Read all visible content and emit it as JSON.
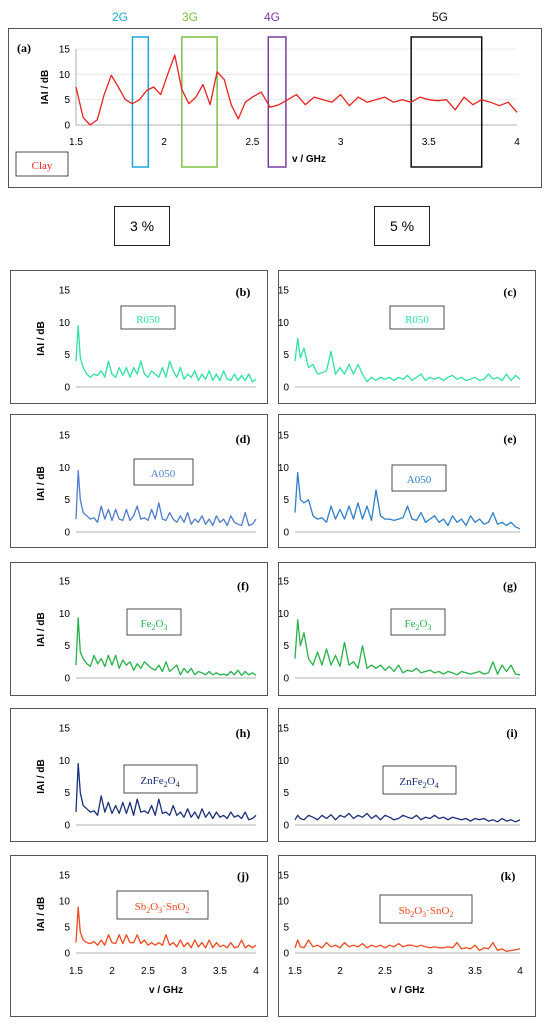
{
  "band_labels": [
    {
      "id": "2G",
      "text": "2G",
      "color": "#1aa7d8",
      "xmin": 1.82,
      "xmax": 1.91
    },
    {
      "id": "3G",
      "text": "3G",
      "color": "#7dc242",
      "xmin": 2.1,
      "xmax": 2.3
    },
    {
      "id": "4G",
      "text": "4G",
      "color": "#7a3ea1",
      "xmin": 2.59,
      "xmax": 2.69
    },
    {
      "id": "5G",
      "text": "5G",
      "color": "#111111",
      "xmin": 3.4,
      "xmax": 3.8
    }
  ],
  "concentrations": {
    "left": "3 %",
    "right": "5 %"
  },
  "shared_axes": {
    "ylabel": "IAI / dB",
    "xlabel": "v / GHz",
    "xlim": [
      1.5,
      4
    ],
    "ylim": [
      0,
      15
    ],
    "yticks": [
      "0",
      "5",
      "10",
      "15"
    ],
    "xticks": [
      "1.5",
      "2",
      "2.5",
      "3",
      "3.5",
      "4"
    ],
    "x_main_ticks": [
      "1.5",
      "2",
      "2.5",
      "3",
      "3.5",
      "4"
    ]
  },
  "chart_data": [
    {
      "id": "a",
      "type": "line",
      "panel_label": "(a)",
      "material": "Clay",
      "color": "#e8231f",
      "ylim": [
        0,
        15
      ],
      "xlim": [
        1.5,
        4
      ],
      "x": [
        1.5,
        1.54,
        1.58,
        1.62,
        1.66,
        1.7,
        1.74,
        1.78,
        1.82,
        1.86,
        1.9,
        1.94,
        1.98,
        2.02,
        2.06,
        2.1,
        2.14,
        2.18,
        2.22,
        2.26,
        2.3,
        2.34,
        2.38,
        2.42,
        2.46,
        2.5,
        2.55,
        2.6,
        2.65,
        2.7,
        2.75,
        2.8,
        2.85,
        2.9,
        2.95,
        3.0,
        3.05,
        3.1,
        3.15,
        3.2,
        3.25,
        3.3,
        3.35,
        3.4,
        3.45,
        3.5,
        3.55,
        3.6,
        3.65,
        3.7,
        3.75,
        3.8,
        3.85,
        3.9,
        3.95,
        4.0
      ],
      "y": [
        7.5,
        1.5,
        0,
        1,
        6,
        9.8,
        7.5,
        5,
        4.2,
        5,
        6.8,
        7.5,
        6,
        10,
        13.8,
        7,
        4.2,
        5.5,
        8,
        4,
        10.5,
        9,
        4,
        1.2,
        4.5,
        5.5,
        6.5,
        3.5,
        4,
        5,
        6,
        4,
        5.5,
        5,
        4.5,
        6,
        3.8,
        5.5,
        4.5,
        5,
        5.5,
        4.5,
        5,
        4.5,
        5.5,
        5,
        4.8,
        5,
        3,
        5.5,
        4,
        5,
        4.5,
        3.8,
        4.5,
        2.5
      ]
    },
    {
      "id": "b",
      "type": "line",
      "panel_label": "(b)",
      "material": "R050",
      "material_sub": "",
      "material_tail": "",
      "color": "#2fe2a0",
      "ylim": [
        0,
        15
      ],
      "xlim": [
        1.5,
        4
      ],
      "x": [
        1.5,
        1.53,
        1.56,
        1.6,
        1.65,
        1.7,
        1.75,
        1.8,
        1.85,
        1.9,
        1.95,
        2.0,
        2.05,
        2.1,
        2.15,
        2.2,
        2.25,
        2.3,
        2.35,
        2.4,
        2.45,
        2.5,
        2.55,
        2.6,
        2.65,
        2.7,
        2.75,
        2.8,
        2.85,
        2.9,
        2.95,
        3.0,
        3.05,
        3.1,
        3.15,
        3.2,
        3.25,
        3.3,
        3.35,
        3.4,
        3.45,
        3.5,
        3.55,
        3.6,
        3.65,
        3.7,
        3.75,
        3.8,
        3.85,
        3.9,
        3.95,
        4.0
      ],
      "y": [
        4,
        9.5,
        4.5,
        3,
        2,
        1.5,
        2,
        1.8,
        2.5,
        1.5,
        4,
        2,
        1.5,
        3,
        1.8,
        3,
        1.5,
        3,
        2,
        4,
        2,
        1.5,
        2.5,
        2,
        1.5,
        3,
        1.5,
        4,
        2.5,
        1.5,
        3,
        1.2,
        2,
        1.5,
        2.5,
        1,
        2,
        1.2,
        2.5,
        1,
        2,
        1,
        2.5,
        1.2,
        1,
        2,
        1,
        1.8,
        1,
        2,
        0.8,
        1.2
      ]
    },
    {
      "id": "c",
      "type": "line",
      "panel_label": "(c)",
      "material": "R050",
      "material_sub": "",
      "material_tail": "",
      "color": "#2fe2a0",
      "ylim": [
        0,
        15
      ],
      "xlim": [
        1.5,
        4
      ],
      "x": [
        1.5,
        1.53,
        1.56,
        1.6,
        1.65,
        1.7,
        1.75,
        1.8,
        1.85,
        1.9,
        1.95,
        2.0,
        2.05,
        2.1,
        2.15,
        2.2,
        2.25,
        2.3,
        2.35,
        2.4,
        2.45,
        2.5,
        2.55,
        2.6,
        2.65,
        2.7,
        2.75,
        2.8,
        2.85,
        2.9,
        2.95,
        3.0,
        3.05,
        3.1,
        3.15,
        3.2,
        3.25,
        3.3,
        3.35,
        3.4,
        3.45,
        3.5,
        3.55,
        3.6,
        3.65,
        3.7,
        3.75,
        3.8,
        3.85,
        3.9,
        3.95,
        4.0
      ],
      "y": [
        4,
        7.5,
        4.5,
        6,
        3,
        3.5,
        2,
        2.2,
        2.5,
        5.5,
        2,
        3,
        2,
        3.5,
        2,
        3.5,
        2,
        0.8,
        1.5,
        1,
        1.5,
        1.2,
        1.5,
        1,
        1.5,
        1.2,
        1.8,
        1,
        1.5,
        2,
        1,
        1.5,
        1.2,
        1.5,
        1,
        1.5,
        1.8,
        1.2,
        1.5,
        1,
        1.2,
        1.5,
        1,
        1.2,
        2,
        1.2,
        1.5,
        1,
        2,
        1,
        1.8,
        1.2
      ]
    },
    {
      "id": "d",
      "type": "line",
      "panel_label": "(d)",
      "material": "A050",
      "material_sub": "",
      "material_tail": "",
      "color": "#4f7ccc",
      "ylim": [
        0,
        15
      ],
      "xlim": [
        1.5,
        4
      ],
      "x": [
        1.5,
        1.53,
        1.56,
        1.6,
        1.65,
        1.7,
        1.75,
        1.8,
        1.85,
        1.9,
        1.95,
        2.0,
        2.05,
        2.1,
        2.15,
        2.2,
        2.25,
        2.3,
        2.35,
        2.4,
        2.45,
        2.5,
        2.55,
        2.6,
        2.65,
        2.7,
        2.75,
        2.8,
        2.85,
        2.9,
        2.95,
        3.0,
        3.05,
        3.1,
        3.15,
        3.2,
        3.25,
        3.3,
        3.35,
        3.4,
        3.45,
        3.5,
        3.55,
        3.6,
        3.65,
        3.7,
        3.75,
        3.8,
        3.85,
        3.9,
        3.95,
        4.0
      ],
      "y": [
        2,
        9.5,
        5,
        3,
        2.5,
        2,
        2.2,
        1.5,
        4,
        2,
        3.5,
        1.8,
        3.5,
        2,
        1.8,
        3.5,
        1.8,
        2.5,
        4,
        2,
        2.2,
        1.8,
        3.5,
        2,
        4.5,
        2,
        1.8,
        3,
        2,
        1.5,
        2.5,
        1.5,
        3,
        1.2,
        2,
        1.5,
        2.5,
        1.2,
        2,
        1,
        2.5,
        1.5,
        2,
        1,
        2.5,
        1.5,
        1.2,
        1,
        3,
        1,
        1.2,
        2
      ]
    },
    {
      "id": "e",
      "type": "line",
      "panel_label": "(e)",
      "material": "A050",
      "material_sub": "",
      "material_tail": "",
      "color": "#2f7fc8",
      "ylim": [
        0,
        15
      ],
      "xlim": [
        1.5,
        4
      ],
      "x": [
        1.5,
        1.53,
        1.56,
        1.6,
        1.65,
        1.7,
        1.75,
        1.8,
        1.85,
        1.9,
        1.95,
        2.0,
        2.05,
        2.1,
        2.15,
        2.2,
        2.25,
        2.3,
        2.35,
        2.4,
        2.45,
        2.5,
        2.55,
        2.6,
        2.65,
        2.7,
        2.75,
        2.8,
        2.85,
        2.9,
        2.95,
        3.0,
        3.05,
        3.1,
        3.15,
        3.2,
        3.25,
        3.3,
        3.35,
        3.4,
        3.45,
        3.5,
        3.55,
        3.6,
        3.65,
        3.7,
        3.75,
        3.8,
        3.85,
        3.9,
        3.95,
        4.0
      ],
      "y": [
        3,
        9.2,
        5,
        4.5,
        5,
        2.5,
        2,
        2.2,
        1.5,
        4,
        2,
        3.5,
        2,
        4,
        2,
        4.5,
        2,
        4,
        1.8,
        6.5,
        2.5,
        2,
        2,
        1.8,
        2,
        2.2,
        4,
        2,
        1.8,
        3,
        1.5,
        2,
        2.5,
        1.5,
        2,
        1,
        2.5,
        1.5,
        2,
        1,
        2.5,
        1.5,
        2,
        1.2,
        1.5,
        3,
        1.2,
        1.5,
        1,
        1.5,
        0.8,
        0.5
      ]
    },
    {
      "id": "f",
      "type": "line",
      "panel_label": "(f)",
      "material": "Fe",
      "material_sub": "2",
      "material_tail": "O3",
      "color": "#25b24a",
      "ylim": [
        0,
        15
      ],
      "xlim": [
        1.5,
        4
      ],
      "x": [
        1.5,
        1.53,
        1.56,
        1.6,
        1.65,
        1.7,
        1.75,
        1.8,
        1.85,
        1.9,
        1.95,
        2.0,
        2.05,
        2.1,
        2.15,
        2.2,
        2.25,
        2.3,
        2.35,
        2.4,
        2.45,
        2.5,
        2.55,
        2.6,
        2.65,
        2.7,
        2.75,
        2.8,
        2.85,
        2.9,
        2.95,
        3.0,
        3.05,
        3.1,
        3.15,
        3.2,
        3.25,
        3.3,
        3.35,
        3.4,
        3.45,
        3.5,
        3.55,
        3.6,
        3.65,
        3.7,
        3.75,
        3.8,
        3.85,
        3.9,
        3.95,
        4.0
      ],
      "y": [
        2,
        9.3,
        4,
        3,
        2.2,
        1.8,
        3.5,
        2.2,
        3,
        1.8,
        3.5,
        2,
        3.5,
        1.5,
        2.8,
        2,
        2.5,
        1.2,
        2.2,
        1.5,
        2.5,
        2,
        1.5,
        1.2,
        2,
        1,
        2.5,
        1,
        1.5,
        2,
        0.5,
        1.5,
        0.8,
        1.5,
        0.5,
        1,
        0.8,
        0.5,
        1,
        0.5,
        0.8,
        0.5,
        0.6,
        0.4,
        1,
        0.5,
        1.2,
        0.4,
        1,
        0.5,
        0.8,
        0.4
      ]
    },
    {
      "id": "g",
      "type": "line",
      "panel_label": "(g)",
      "material": "Fe",
      "material_sub": "2",
      "material_tail": "O3",
      "color": "#25b24a",
      "ylim": [
        0,
        15
      ],
      "xlim": [
        1.5,
        4
      ],
      "x": [
        1.5,
        1.53,
        1.56,
        1.6,
        1.65,
        1.7,
        1.75,
        1.8,
        1.85,
        1.9,
        1.95,
        2.0,
        2.05,
        2.1,
        2.15,
        2.2,
        2.25,
        2.3,
        2.35,
        2.4,
        2.45,
        2.5,
        2.55,
        2.6,
        2.65,
        2.7,
        2.75,
        2.8,
        2.85,
        2.9,
        2.95,
        3.0,
        3.05,
        3.1,
        3.15,
        3.2,
        3.25,
        3.3,
        3.35,
        3.4,
        3.45,
        3.5,
        3.55,
        3.6,
        3.65,
        3.7,
        3.75,
        3.8,
        3.85,
        3.9,
        3.95,
        4.0
      ],
      "y": [
        3,
        9,
        5,
        7,
        3,
        2,
        4,
        2,
        4.5,
        2,
        3.5,
        1.8,
        5.5,
        2,
        2.5,
        1.5,
        5,
        1.5,
        2,
        1.5,
        2,
        1.2,
        1.8,
        1,
        2,
        0.8,
        1.2,
        1,
        1.5,
        0.8,
        1,
        1.2,
        0.8,
        1,
        0.6,
        1,
        0.8,
        0.5,
        1,
        0.8,
        0.6,
        0.8,
        1,
        0.6,
        0.8,
        2.5,
        0.6,
        2,
        1,
        2,
        0.6,
        0.5
      ]
    },
    {
      "id": "h",
      "type": "line",
      "panel_label": "(h)",
      "material": "ZnFe",
      "material_sub": "2",
      "material_tail": "O4",
      "color": "#1a2f7a",
      "ylim": [
        0,
        15
      ],
      "xlim": [
        1.5,
        4
      ],
      "x": [
        1.5,
        1.53,
        1.56,
        1.6,
        1.65,
        1.7,
        1.75,
        1.8,
        1.85,
        1.9,
        1.95,
        2.0,
        2.05,
        2.1,
        2.15,
        2.2,
        2.25,
        2.3,
        2.35,
        2.4,
        2.45,
        2.5,
        2.55,
        2.6,
        2.65,
        2.7,
        2.75,
        2.8,
        2.85,
        2.9,
        2.95,
        3.0,
        3.05,
        3.1,
        3.15,
        3.2,
        3.25,
        3.3,
        3.35,
        3.4,
        3.45,
        3.5,
        3.55,
        3.6,
        3.65,
        3.7,
        3.75,
        3.8,
        3.85,
        3.9,
        3.95,
        4.0
      ],
      "y": [
        2,
        9.5,
        5,
        3,
        2.5,
        2,
        2.2,
        1.5,
        4.5,
        2,
        3.5,
        1.8,
        3,
        1.8,
        3.5,
        1.8,
        3.5,
        1.5,
        4,
        2,
        2.2,
        1.8,
        3,
        1.5,
        4,
        1.8,
        2,
        1.5,
        3,
        1.5,
        2,
        1.2,
        2.5,
        1.2,
        2,
        1,
        2.5,
        1.2,
        2,
        1,
        2,
        1.2,
        1.5,
        1,
        2,
        1.2,
        1.5,
        1,
        2,
        0.8,
        1,
        1.5
      ]
    },
    {
      "id": "i",
      "type": "line",
      "panel_label": "(i)",
      "material": "ZnFe",
      "material_sub": "2",
      "material_tail": "O4",
      "color": "#1a2f7a",
      "ylim": [
        0,
        15
      ],
      "xlim": [
        1.5,
        4
      ],
      "x": [
        1.5,
        1.53,
        1.56,
        1.6,
        1.65,
        1.7,
        1.75,
        1.8,
        1.85,
        1.9,
        1.95,
        2.0,
        2.05,
        2.1,
        2.15,
        2.2,
        2.25,
        2.3,
        2.35,
        2.4,
        2.45,
        2.5,
        2.55,
        2.6,
        2.65,
        2.7,
        2.75,
        2.8,
        2.85,
        2.9,
        2.95,
        3.0,
        3.05,
        3.1,
        3.15,
        3.2,
        3.25,
        3.3,
        3.35,
        3.4,
        3.45,
        3.5,
        3.55,
        3.6,
        3.65,
        3.7,
        3.75,
        3.8,
        3.85,
        3.9,
        3.95,
        4.0
      ],
      "y": [
        0.8,
        1.5,
        1,
        0.8,
        1.5,
        1.2,
        0.8,
        1.5,
        1,
        1.6,
        0.8,
        1.5,
        1.2,
        1.8,
        1,
        1.5,
        1.2,
        1.8,
        1,
        1.5,
        0.8,
        1.5,
        1.2,
        0.8,
        1,
        1.5,
        1.2,
        1,
        1.5,
        0.8,
        1.2,
        1,
        1.5,
        1,
        1.2,
        0.8,
        1.2,
        1,
        0.8,
        1,
        0.6,
        1,
        0.8,
        1,
        0.6,
        0.8,
        0.5,
        1,
        0.6,
        0.8,
        0.5,
        0.8
      ]
    },
    {
      "id": "j",
      "type": "line",
      "panel_label": "(j)",
      "material": "Sb",
      "material_sub": "2",
      "material_tail": "O3·SnO2",
      "color": "#ee4a1e",
      "ylim": [
        0,
        15
      ],
      "xlim": [
        1.5,
        4
      ],
      "x": [
        1.5,
        1.53,
        1.56,
        1.6,
        1.65,
        1.7,
        1.75,
        1.8,
        1.85,
        1.9,
        1.95,
        2.0,
        2.05,
        2.1,
        2.15,
        2.2,
        2.25,
        2.3,
        2.35,
        2.4,
        2.45,
        2.5,
        2.55,
        2.6,
        2.65,
        2.7,
        2.75,
        2.8,
        2.85,
        2.9,
        2.95,
        3.0,
        3.05,
        3.1,
        3.15,
        3.2,
        3.25,
        3.3,
        3.35,
        3.4,
        3.45,
        3.5,
        3.55,
        3.6,
        3.65,
        3.7,
        3.75,
        3.8,
        3.85,
        3.9,
        3.95,
        4.0
      ],
      "y": [
        2,
        8.8,
        4,
        2.5,
        2,
        1.8,
        2.2,
        1.5,
        2.5,
        1.5,
        3.5,
        2,
        1.8,
        3.5,
        1.8,
        3.5,
        2,
        2,
        3.5,
        1.8,
        2.5,
        1.5,
        2,
        1.5,
        2,
        1.5,
        3.5,
        1.5,
        2,
        1.2,
        2.5,
        1.2,
        2,
        1,
        2.5,
        1.2,
        2,
        1,
        2.5,
        1,
        2,
        1.2,
        1.5,
        1,
        2,
        1,
        1.2,
        2.5,
        1,
        1.5,
        1,
        1.5
      ]
    },
    {
      "id": "k",
      "type": "line",
      "panel_label": "(k)",
      "material": "Sb",
      "material_sub": "2",
      "material_tail": "O3·SnO2",
      "color": "#ee4a1e",
      "ylim": [
        0,
        15
      ],
      "xlim": [
        1.5,
        4
      ],
      "x": [
        1.5,
        1.53,
        1.56,
        1.6,
        1.65,
        1.7,
        1.75,
        1.8,
        1.85,
        1.9,
        1.95,
        2.0,
        2.05,
        2.1,
        2.15,
        2.2,
        2.25,
        2.3,
        2.35,
        2.4,
        2.45,
        2.5,
        2.55,
        2.6,
        2.65,
        2.7,
        2.75,
        2.8,
        2.85,
        2.9,
        2.95,
        3.0,
        3.05,
        3.1,
        3.15,
        3.2,
        3.25,
        3.3,
        3.35,
        3.4,
        3.45,
        3.5,
        3.55,
        3.6,
        3.65,
        3.7,
        3.75,
        3.8,
        3.85,
        3.9,
        3.95,
        4.0
      ],
      "y": [
        1,
        2.5,
        1.2,
        1,
        2.5,
        1.2,
        1.5,
        1,
        2,
        1.2,
        1.5,
        1,
        2,
        1.2,
        1.5,
        1.2,
        1.8,
        1,
        1.5,
        1.2,
        1.5,
        1,
        1.5,
        1.2,
        1.8,
        1.2,
        1.5,
        1.5,
        1.2,
        1.5,
        1.2,
        1,
        1.2,
        1,
        1,
        1.2,
        1,
        2,
        0.8,
        1,
        0.8,
        1.5,
        0.5,
        1,
        0.8,
        2,
        0.5,
        0.8,
        0.3,
        0.5,
        0.6,
        0.8
      ]
    }
  ]
}
